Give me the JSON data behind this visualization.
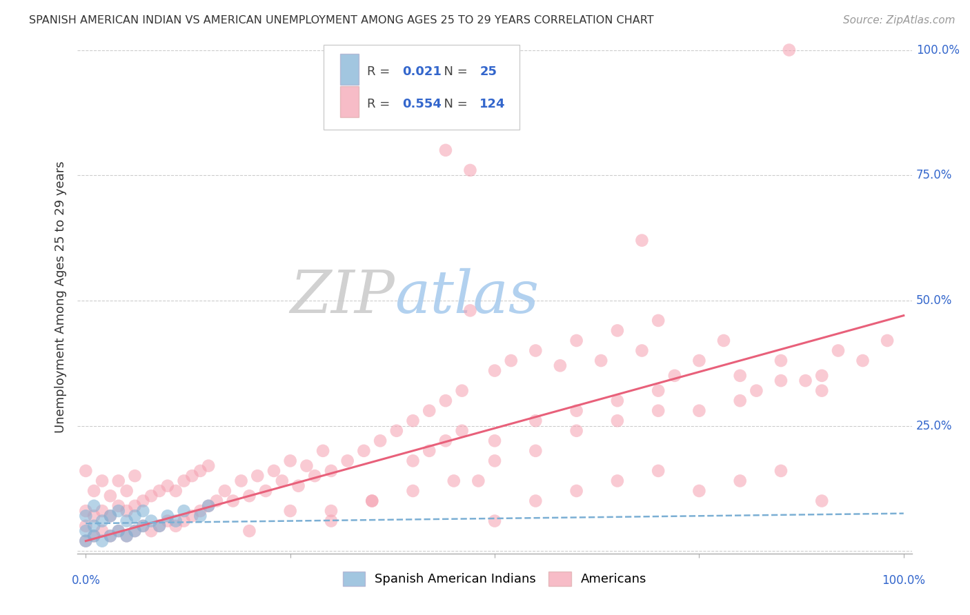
{
  "title": "SPANISH AMERICAN INDIAN VS AMERICAN UNEMPLOYMENT AMONG AGES 25 TO 29 YEARS CORRELATION CHART",
  "source": "Source: ZipAtlas.com",
  "ylabel": "Unemployment Among Ages 25 to 29 years",
  "legend_blue_R": "0.021",
  "legend_blue_N": "25",
  "legend_pink_R": "0.554",
  "legend_pink_N": "124",
  "legend_blue_label": "Spanish American Indians",
  "legend_pink_label": "Americans",
  "blue_color": "#7BAFD4",
  "pink_color": "#F5A0B0",
  "blue_line_color": "#7BAFD4",
  "pink_line_color": "#E8607A",
  "background_color": "#FFFFFF",
  "blue_x": [
    0.0,
    0.0,
    0.0,
    0.01,
    0.01,
    0.01,
    0.02,
    0.02,
    0.03,
    0.03,
    0.04,
    0.04,
    0.05,
    0.05,
    0.06,
    0.06,
    0.07,
    0.07,
    0.08,
    0.09,
    0.1,
    0.11,
    0.12,
    0.14,
    0.15
  ],
  "blue_y": [
    0.02,
    0.04,
    0.07,
    0.03,
    0.05,
    0.09,
    0.02,
    0.06,
    0.03,
    0.07,
    0.04,
    0.08,
    0.03,
    0.06,
    0.04,
    0.07,
    0.05,
    0.08,
    0.06,
    0.05,
    0.07,
    0.06,
    0.08,
    0.07,
    0.09
  ],
  "pink_x": [
    0.0,
    0.0,
    0.0,
    0.0,
    0.01,
    0.01,
    0.01,
    0.02,
    0.02,
    0.02,
    0.03,
    0.03,
    0.03,
    0.04,
    0.04,
    0.04,
    0.05,
    0.05,
    0.05,
    0.06,
    0.06,
    0.06,
    0.07,
    0.07,
    0.08,
    0.08,
    0.09,
    0.09,
    0.1,
    0.1,
    0.11,
    0.11,
    0.12,
    0.12,
    0.13,
    0.13,
    0.14,
    0.14,
    0.15,
    0.15,
    0.16,
    0.17,
    0.18,
    0.19,
    0.2,
    0.21,
    0.22,
    0.23,
    0.24,
    0.25,
    0.26,
    0.27,
    0.28,
    0.29,
    0.3,
    0.32,
    0.34,
    0.36,
    0.38,
    0.4,
    0.42,
    0.44,
    0.46,
    0.47,
    0.5,
    0.52,
    0.55,
    0.58,
    0.6,
    0.63,
    0.65,
    0.68,
    0.7,
    0.72,
    0.75,
    0.78,
    0.8,
    0.82,
    0.85,
    0.88,
    0.9,
    0.92,
    0.95,
    0.98,
    0.44,
    0.47,
    0.68,
    0.86,
    0.3,
    0.35,
    0.4,
    0.45,
    0.5,
    0.55,
    0.6,
    0.65,
    0.7,
    0.75,
    0.8,
    0.85,
    0.9,
    0.5,
    0.55,
    0.6,
    0.65,
    0.7,
    0.75,
    0.8,
    0.85,
    0.9,
    0.2,
    0.25,
    0.3,
    0.35,
    0.4,
    0.42,
    0.44,
    0.46,
    0.48,
    0.5,
    0.55,
    0.6,
    0.65,
    0.7
  ],
  "pink_y": [
    0.02,
    0.05,
    0.08,
    0.16,
    0.03,
    0.07,
    0.12,
    0.04,
    0.08,
    0.14,
    0.03,
    0.07,
    0.11,
    0.04,
    0.09,
    0.14,
    0.03,
    0.08,
    0.12,
    0.04,
    0.09,
    0.15,
    0.05,
    0.1,
    0.04,
    0.11,
    0.05,
    0.12,
    0.06,
    0.13,
    0.05,
    0.12,
    0.06,
    0.14,
    0.07,
    0.15,
    0.08,
    0.16,
    0.09,
    0.17,
    0.1,
    0.12,
    0.1,
    0.14,
    0.11,
    0.15,
    0.12,
    0.16,
    0.14,
    0.18,
    0.13,
    0.17,
    0.15,
    0.2,
    0.16,
    0.18,
    0.2,
    0.22,
    0.24,
    0.26,
    0.28,
    0.3,
    0.32,
    0.48,
    0.36,
    0.38,
    0.4,
    0.37,
    0.42,
    0.38,
    0.44,
    0.4,
    0.46,
    0.35,
    0.38,
    0.42,
    0.35,
    0.32,
    0.38,
    0.34,
    0.35,
    0.4,
    0.38,
    0.42,
    0.8,
    0.76,
    0.62,
    1.0,
    0.08,
    0.1,
    0.12,
    0.14,
    0.06,
    0.1,
    0.12,
    0.14,
    0.16,
    0.12,
    0.14,
    0.16,
    0.1,
    0.22,
    0.26,
    0.28,
    0.3,
    0.32,
    0.28,
    0.3,
    0.34,
    0.32,
    0.04,
    0.08,
    0.06,
    0.1,
    0.18,
    0.2,
    0.22,
    0.24,
    0.14,
    0.18,
    0.2,
    0.24,
    0.26,
    0.28
  ],
  "xlim": [
    0.0,
    1.0
  ],
  "ylim": [
    0.0,
    1.0
  ],
  "pink_line_x0": 0.0,
  "pink_line_y0": 0.02,
  "pink_line_x1": 1.0,
  "pink_line_y1": 0.47,
  "blue_line_x0": 0.0,
  "blue_line_y0": 0.055,
  "blue_line_x1": 1.0,
  "blue_line_y1": 0.075
}
